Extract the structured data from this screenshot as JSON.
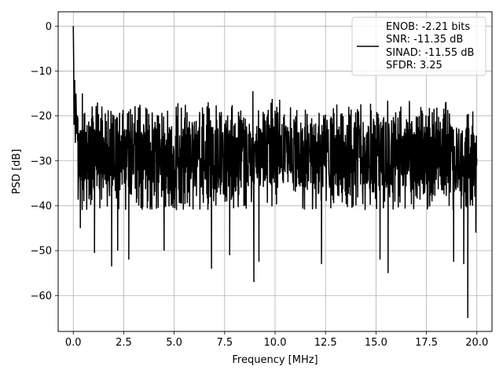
{
  "chart_data": {
    "type": "line",
    "title": "",
    "xlabel": "Frequency [MHz]",
    "ylabel": "PSD [dB]",
    "xlim": [
      -0.75,
      20.75
    ],
    "ylim": [
      -68,
      3.2
    ],
    "xticks": [
      0.0,
      2.5,
      5.0,
      7.5,
      10.0,
      12.5,
      15.0,
      17.5,
      20.0
    ],
    "xtick_labels": [
      "0.0",
      "2.5",
      "5.0",
      "7.5",
      "10.0",
      "12.5",
      "15.0",
      "17.5",
      "20.0"
    ],
    "yticks": [
      0,
      -10,
      -20,
      -30,
      -40,
      -50,
      -60
    ],
    "ytick_labels": [
      "0",
      "−10",
      "−20",
      "−30",
      "−40",
      "−50",
      "−60"
    ],
    "grid": true,
    "legend_position": "top-right",
    "legend_entries": [
      "ENOB: -2.21 bits",
      "SNR: -11.35 dB",
      "SINAD: -11.55 dB",
      "SFDR: 3.25"
    ],
    "line_color": "#000000",
    "series": [
      {
        "name": "ENOB: -2.21 bits",
        "x_range": [
          0,
          20
        ],
        "peak": {
          "x": 0.0,
          "y": 0.0
        },
        "initial_points": [
          [
            0.0,
            0.0
          ],
          [
            0.02,
            -8
          ],
          [
            0.04,
            -22
          ],
          [
            0.07,
            -12
          ],
          [
            0.1,
            -26
          ],
          [
            0.13,
            -15
          ],
          [
            0.17,
            -24
          ]
        ],
        "noise_floor_mean": -29,
        "noise_upper_typical": -20,
        "noise_lower_typical": -40,
        "deep_nulls": [
          [
            0.35,
            -45
          ],
          [
            1.05,
            -50.5
          ],
          [
            1.9,
            -53.5
          ],
          [
            2.2,
            -50
          ],
          [
            2.75,
            -52
          ],
          [
            4.5,
            -50
          ],
          [
            6.85,
            -54
          ],
          [
            7.75,
            -51
          ],
          [
            8.95,
            -57
          ],
          [
            9.2,
            -52.5
          ],
          [
            12.3,
            -53
          ],
          [
            15.2,
            -52
          ],
          [
            15.6,
            -55
          ],
          [
            18.85,
            -52.5
          ],
          [
            19.35,
            -53
          ],
          [
            19.55,
            -65
          ],
          [
            19.95,
            -46
          ]
        ],
        "upper_peaks": [
          [
            0.45,
            -15
          ],
          [
            1.2,
            -17
          ],
          [
            3.3,
            -17.5
          ],
          [
            8.9,
            -14.5
          ],
          [
            19.8,
            -19
          ]
        ]
      }
    ]
  }
}
